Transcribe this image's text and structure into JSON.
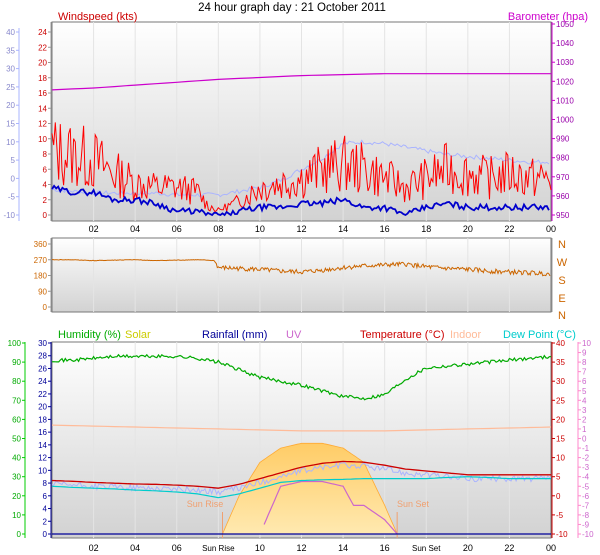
{
  "title": "24 hour graph day : 21 October 2011",
  "x_tick_labels": [
    "02",
    "04",
    "06",
    "08",
    "10",
    "12",
    "14",
    "16",
    "18",
    "20",
    "22",
    "00"
  ],
  "x_tick_labels_bottom": [
    "02",
    "04",
    "06",
    "Sun Rise",
    "10",
    "12",
    "14",
    "16",
    "Sun Set",
    "20",
    "22",
    "00"
  ],
  "chart_data": [
    {
      "type": "line",
      "name": "wind-barometer",
      "left_label": "Windspeed (kts)",
      "right_label": "Barometer (hpa)",
      "x_range": [
        0,
        24
      ],
      "left_axis_ticks": [
        0,
        2,
        4,
        6,
        8,
        10,
        12,
        14,
        16,
        18,
        20,
        22,
        24
      ],
      "temp_axis_ticks": [
        -10,
        -5,
        0,
        5,
        10,
        15,
        20,
        25,
        30,
        35,
        40
      ],
      "right_axis_ticks": [
        950,
        960,
        970,
        980,
        990,
        1000,
        1010,
        1020,
        1030,
        1040,
        1050
      ],
      "colors": {
        "wind": "#0000cc",
        "gust": "#ff0000",
        "barometer": "#cc00cc",
        "temp": "#aab4ff"
      },
      "series": {
        "barometer": {
          "x": [
            0,
            2,
            4,
            6,
            8,
            10,
            12,
            14,
            16,
            18,
            20,
            22,
            24
          ],
          "y": [
            1015.5,
            1016.5,
            1018,
            1019.5,
            1021,
            1022,
            1023,
            1023.5,
            1024,
            1024,
            1024,
            1024,
            1024
          ]
        },
        "wind_avg": {
          "x": [
            0,
            1,
            2,
            3,
            4,
            5,
            6,
            7,
            7.5,
            8,
            8.5,
            9,
            10,
            11,
            12,
            13,
            14,
            15,
            16,
            17,
            18,
            19,
            20,
            21,
            22,
            23,
            24
          ],
          "y": [
            3.5,
            3,
            3,
            2,
            2,
            1.5,
            0.5,
            0.5,
            0,
            0,
            0,
            0.5,
            1,
            1,
            1.5,
            1.5,
            2,
            1,
            1,
            0,
            1,
            1.5,
            1,
            1,
            1,
            1,
            1
          ]
        },
        "wind_gust": {
          "x": [
            0,
            1,
            2,
            3,
            4,
            5,
            6,
            7,
            7.5,
            8,
            8.5,
            9,
            10,
            11,
            12,
            13,
            14,
            15,
            16,
            17,
            18,
            19,
            20,
            21,
            22,
            23,
            24
          ],
          "y": [
            7,
            6.5,
            6,
            4.5,
            3.5,
            3,
            3,
            2.5,
            1,
            0.5,
            1,
            1.5,
            3,
            3.5,
            4,
            5,
            5.5,
            5,
            4,
            3,
            4,
            5,
            4.5,
            4,
            4.5,
            4,
            4
          ]
        },
        "temperature": {
          "x": [
            0,
            1,
            2,
            3,
            4,
            5,
            6,
            7,
            8,
            9,
            10,
            11,
            12,
            13,
            14,
            15,
            16,
            17,
            18,
            19,
            20,
            21,
            22,
            23,
            24
          ],
          "y": [
            -3,
            -3.5,
            -4,
            -4,
            -4,
            -4,
            -4.5,
            -4.5,
            -4.5,
            -3.5,
            -2.5,
            -0.5,
            2.5,
            5.5,
            9.5,
            10,
            9.5,
            8.5,
            7.5,
            6.5,
            6,
            5.5,
            5,
            4.5,
            4.5
          ]
        }
      }
    },
    {
      "type": "line",
      "name": "wind-direction",
      "left_axis_ticks": [
        0,
        90,
        180,
        270,
        360
      ],
      "right_labels": [
        "N",
        "W",
        "S",
        "E",
        "N"
      ],
      "color": "#cc6600",
      "x": [
        0,
        1,
        2,
        3,
        4,
        5,
        6,
        7,
        7.8,
        8,
        9,
        10,
        11,
        12,
        13,
        14,
        15,
        16,
        17,
        18,
        19,
        20,
        21,
        22,
        23,
        24
      ],
      "y": [
        270,
        270,
        265,
        268,
        270,
        265,
        268,
        270,
        265,
        225,
        220,
        215,
        205,
        200,
        210,
        225,
        235,
        240,
        245,
        230,
        220,
        215,
        205,
        200,
        195,
        190
      ]
    },
    {
      "type": "line",
      "name": "humidity-temperature",
      "legend": [
        "Humidity (%)",
        "Solar",
        "Rainfall (mm)",
        "UV",
        "Temperature (°C)",
        "Indoor",
        "Dew Point (°C)"
      ],
      "colors": {
        "humidity": "#00aa00",
        "solar": "#cccc00",
        "rainfall": "#000099",
        "uv": "#cc66cc",
        "temperature": "#cc0000",
        "indoor": "#ffbb99",
        "dew_point": "#00cccc"
      },
      "humidity_axis_ticks": [
        0,
        10,
        20,
        30,
        40,
        50,
        60,
        70,
        80,
        90,
        100
      ],
      "rainfall_axis_ticks": [
        0,
        2,
        4,
        6,
        8,
        10,
        12,
        14,
        16,
        18,
        20,
        22,
        24,
        26,
        28,
        30
      ],
      "temp_axis_ticks": [
        -10,
        -5,
        0,
        5,
        10,
        15,
        20,
        25,
        30,
        35,
        40
      ],
      "uv_axis_ticks": [
        -10,
        -9,
        -8,
        -7,
        -6,
        -5,
        -4,
        -3,
        -2,
        -1,
        0,
        1,
        2,
        3,
        4,
        5,
        6,
        7,
        8,
        9,
        10
      ],
      "annotations": [
        "Sun Rise",
        "Sun Set"
      ],
      "series": {
        "humidity": {
          "x": [
            0,
            1,
            2,
            3,
            4,
            5,
            6,
            7,
            8,
            9,
            10,
            11,
            12,
            13,
            14,
            15,
            16,
            17,
            18,
            19,
            20,
            21,
            22,
            23,
            24
          ],
          "y": [
            91,
            91,
            92,
            93,
            93,
            93,
            93,
            92,
            90,
            86,
            82,
            80,
            78,
            75,
            72,
            71,
            73,
            81,
            87,
            88,
            89,
            90,
            91,
            92,
            93
          ]
        },
        "indoor": {
          "x": [
            0,
            4,
            8,
            12,
            16,
            20,
            24
          ],
          "y": [
            18.5,
            18,
            17.5,
            17,
            17,
            17.5,
            18
          ]
        },
        "temperature": {
          "x": [
            0,
            1,
            2,
            3,
            4,
            5,
            6,
            7,
            8,
            9,
            10,
            11,
            12,
            13,
            14,
            15,
            16,
            17,
            18,
            19,
            20,
            21,
            22,
            23,
            24
          ],
          "y": [
            4,
            3.8,
            3.5,
            3.3,
            3.1,
            3,
            2.8,
            2.5,
            2,
            3,
            4.5,
            6,
            7.5,
            8.5,
            9,
            8.8,
            8,
            7,
            6.5,
            6,
            5.5,
            5.5,
            5.5,
            5.5,
            5.5
          ]
        },
        "dew_point": {
          "x": [
            0,
            1,
            2,
            3,
            4,
            5,
            6,
            7,
            8,
            9,
            10,
            11,
            12,
            13,
            14,
            15,
            16,
            17,
            18,
            19,
            20,
            21,
            22,
            23,
            24
          ],
          "y": [
            2.5,
            2.2,
            2,
            1.8,
            1.5,
            1.3,
            1,
            0.5,
            -0.5,
            0.5,
            2,
            3.5,
            4,
            4.2,
            4.3,
            4.5,
            4.5,
            4.5,
            4.5,
            4.8,
            5,
            4.8,
            4.5,
            4.5,
            4.5
          ]
        },
        "solar": {
          "x": [
            8.2,
            9,
            10,
            11,
            12,
            13,
            14,
            15,
            16,
            16.6
          ],
          "y": [
            0,
            4,
            7.5,
            9,
            9.5,
            9.5,
            9,
            7.5,
            3,
            0
          ]
        },
        "uv": {
          "x": [
            10.2,
            11,
            12,
            13,
            14,
            14.5,
            15,
            16,
            16.6
          ],
          "y": [
            -9,
            -5,
            -4.5,
            -4.5,
            -5,
            -7,
            -7,
            -8.5,
            -10
          ]
        },
        "rainfall": {
          "x": [
            0,
            24
          ],
          "y": [
            0,
            0
          ]
        }
      }
    }
  ]
}
